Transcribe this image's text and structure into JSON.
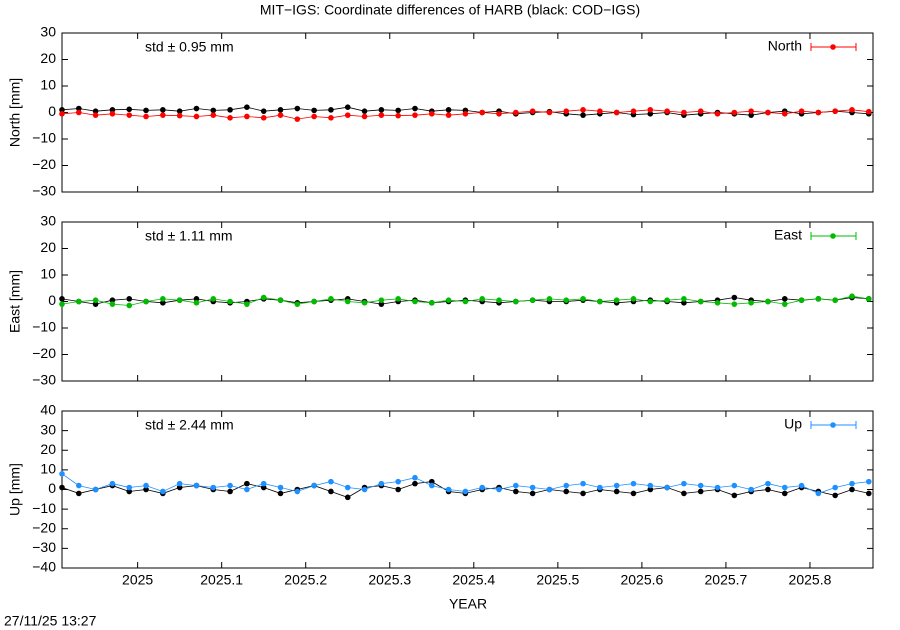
{
  "chart_data": [
    {
      "type": "line",
      "title": "MIT−IGS: Coordinate differences of HARB (black: COD−IGS)",
      "ylabel": "North [mm]",
      "annotation": "std ± 0.95 mm",
      "annotation_color": "#ff0000",
      "xlim": [
        2024.91,
        2025.875
      ],
      "xticks": [
        2025,
        2025.1,
        2025.2,
        2025.3,
        2025.4,
        2025.5,
        2025.6,
        2025.7,
        2025.8
      ],
      "ylim": [
        -30,
        30
      ],
      "yticks": [
        {
          "value": -30,
          "label": "−30"
        },
        {
          "value": -20,
          "label": "−20"
        },
        {
          "value": -10,
          "label": "−10"
        },
        0,
        10,
        20,
        30
      ],
      "x": [
        2024.91,
        2024.93,
        2024.95,
        2024.97,
        2024.99,
        2025.01,
        2025.03,
        2025.05,
        2025.07,
        2025.09,
        2025.11,
        2025.13,
        2025.15,
        2025.17,
        2025.19,
        2025.21,
        2025.23,
        2025.25,
        2025.27,
        2025.29,
        2025.31,
        2025.33,
        2025.35,
        2025.37,
        2025.39,
        2025.41,
        2025.43,
        2025.45,
        2025.47,
        2025.49,
        2025.51,
        2025.53,
        2025.55,
        2025.57,
        2025.59,
        2025.61,
        2025.63,
        2025.65,
        2025.67,
        2025.69,
        2025.71,
        2025.73,
        2025.75,
        2025.77,
        2025.79,
        2025.81,
        2025.83,
        2025.85,
        2025.87
      ],
      "series": [
        {
          "color": "#000000",
          "values": [
            1,
            1.5,
            0.5,
            1,
            1.2,
            0.8,
            1,
            0.5,
            1.5,
            0.8,
            1,
            2,
            0.5,
            1,
            1.5,
            0.8,
            1,
            2,
            0.5,
            1,
            0.8,
            1.5,
            0.5,
            1,
            0.8,
            0,
            0.5,
            -0.5,
            0,
            0.3,
            -0.5,
            -1,
            -0.5,
            0,
            -0.8,
            -0.5,
            0,
            -1,
            -0.5,
            0,
            -0.5,
            -1,
            0,
            0.5,
            -0.5,
            0,
            0.5,
            0,
            -0.5
          ]
        },
        {
          "name": "North",
          "color": "#ff0000",
          "values": [
            -0.5,
            0,
            -1,
            -0.5,
            -1,
            -1.5,
            -1,
            -1.2,
            -1.5,
            -1,
            -2,
            -1.5,
            -2,
            -1,
            -2.5,
            -1.5,
            -2,
            -1,
            -1.5,
            -1,
            -1.2,
            -1,
            -0.5,
            -1,
            -0.5,
            0,
            -0.5,
            0,
            0.5,
            0,
            0.5,
            1,
            0.5,
            0,
            0.5,
            1,
            0.5,
            0,
            0.5,
            -0.5,
            0,
            0.5,
            0,
            -0.5,
            0.5,
            0,
            0.5,
            1,
            0.3
          ]
        }
      ]
    },
    {
      "type": "line",
      "ylabel": "East [mm]",
      "annotation": "std ± 1.11 mm",
      "annotation_color": "#00bb00",
      "xlim": [
        2024.91,
        2025.875
      ],
      "ylim": [
        -30,
        30
      ],
      "yticks": [
        {
          "value": -30,
          "label": "−30"
        },
        {
          "value": -20,
          "label": "−20"
        },
        {
          "value": -10,
          "label": "−10"
        },
        0,
        10,
        20,
        30
      ],
      "x": [
        2024.91,
        2024.93,
        2024.95,
        2024.97,
        2024.99,
        2025.01,
        2025.03,
        2025.05,
        2025.07,
        2025.09,
        2025.11,
        2025.13,
        2025.15,
        2025.17,
        2025.19,
        2025.21,
        2025.23,
        2025.25,
        2025.27,
        2025.29,
        2025.31,
        2025.33,
        2025.35,
        2025.37,
        2025.39,
        2025.41,
        2025.43,
        2025.45,
        2025.47,
        2025.49,
        2025.51,
        2025.53,
        2025.55,
        2025.57,
        2025.59,
        2025.61,
        2025.63,
        2025.65,
        2025.67,
        2025.69,
        2025.71,
        2025.73,
        2025.75,
        2025.77,
        2025.79,
        2025.81,
        2025.83,
        2025.85,
        2025.87
      ],
      "series": [
        {
          "color": "#000000",
          "values": [
            1,
            0,
            -1,
            0.5,
            1,
            0,
            -0.5,
            0.5,
            1,
            0,
            -0.5,
            0,
            1,
            0.5,
            -0.5,
            0,
            0.5,
            1,
            0,
            -1,
            0,
            0.5,
            -0.5,
            0,
            0.5,
            0,
            -0.5,
            0,
            0.5,
            0,
            0,
            0.5,
            0,
            -0.5,
            0,
            0.5,
            0,
            -0.5,
            0,
            0.5,
            1.5,
            0.5,
            0,
            1,
            0.5,
            1,
            0.5,
            1.5,
            1
          ]
        },
        {
          "name": "East",
          "color": "#00bb00",
          "values": [
            -1,
            0,
            0.5,
            -1,
            -1.5,
            0,
            1,
            0.5,
            -0.5,
            1,
            0,
            -1,
            1.5,
            0.5,
            -1,
            0,
            1,
            0,
            -0.5,
            0.5,
            1,
            0,
            -0.5,
            0.5,
            0,
            1,
            0.5,
            0,
            0.5,
            1,
            0.5,
            1,
            0,
            0.5,
            1,
            0,
            0.5,
            1,
            0,
            -0.5,
            -1,
            -0.5,
            0,
            -1,
            0.5,
            1,
            0.5,
            2,
            1
          ]
        }
      ]
    },
    {
      "type": "line",
      "ylabel": "Up [mm]",
      "xlabel": "YEAR",
      "timestamp": "27/11/25 13:27",
      "annotation": "std ± 2.44 mm",
      "annotation_color": "#1e90ff",
      "xlim": [
        2024.91,
        2025.875
      ],
      "xticks": [
        2025,
        2025.1,
        2025.2,
        2025.3,
        2025.4,
        2025.5,
        2025.6,
        2025.7,
        2025.8
      ],
      "ylim": [
        -40,
        40
      ],
      "yticks": [
        {
          "value": -40,
          "label": "−40"
        },
        {
          "value": -30,
          "label": "−30"
        },
        {
          "value": -20,
          "label": "−20"
        },
        {
          "value": -10,
          "label": "−10"
        },
        0,
        10,
        20,
        30,
        40
      ],
      "x": [
        2024.91,
        2024.93,
        2024.95,
        2024.97,
        2024.99,
        2025.01,
        2025.03,
        2025.05,
        2025.07,
        2025.09,
        2025.11,
        2025.13,
        2025.15,
        2025.17,
        2025.19,
        2025.21,
        2025.23,
        2025.25,
        2025.27,
        2025.29,
        2025.31,
        2025.33,
        2025.35,
        2025.37,
        2025.39,
        2025.41,
        2025.43,
        2025.45,
        2025.47,
        2025.49,
        2025.51,
        2025.53,
        2025.55,
        2025.57,
        2025.59,
        2025.61,
        2025.63,
        2025.65,
        2025.67,
        2025.69,
        2025.71,
        2025.73,
        2025.75,
        2025.77,
        2025.79,
        2025.81,
        2025.83,
        2025.85,
        2025.87
      ],
      "series": [
        {
          "color": "#000000",
          "values": [
            1,
            -2,
            0,
            2,
            -1,
            0,
            -2,
            1,
            2,
            0,
            -1,
            3,
            1,
            -2,
            0,
            2,
            -1,
            -4,
            1,
            2,
            0,
            3,
            4,
            -1,
            -2,
            0,
            1,
            -1,
            -2,
            0,
            -1,
            -2,
            0,
            -1,
            -2,
            0,
            1,
            -2,
            -1,
            0,
            -3,
            -1,
            0,
            -2,
            1,
            -1,
            -3,
            0,
            -2
          ]
        },
        {
          "name": "Up",
          "color": "#1e90ff",
          "values": [
            8,
            2,
            0,
            3,
            1,
            2,
            -1,
            3,
            2,
            1,
            2,
            0,
            3,
            1,
            -1,
            2,
            4,
            1,
            0,
            3,
            4,
            6,
            2,
            0,
            -1,
            1,
            0,
            2,
            1,
            0,
            2,
            3,
            1,
            2,
            3,
            2,
            1,
            3,
            2,
            1,
            2,
            0,
            3,
            1,
            2,
            -2,
            1,
            3,
            4
          ]
        }
      ]
    }
  ]
}
